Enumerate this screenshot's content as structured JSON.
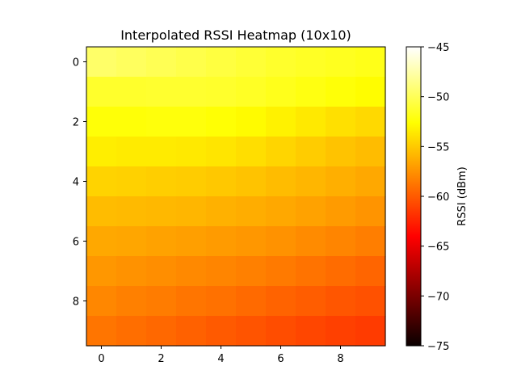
{
  "chart_data": {
    "type": "heatmap",
    "title": "Interpolated RSSI Heatmap (10x10)",
    "xlabel": "",
    "ylabel": "",
    "x_ticks": [
      0,
      2,
      4,
      6,
      8
    ],
    "y_ticks": [
      0,
      2,
      4,
      6,
      8
    ],
    "xlim": [
      -0.5,
      9.5
    ],
    "ylim": [
      9.5,
      -0.5
    ],
    "grid": false,
    "colormap": "hot",
    "colorbar": {
      "label": "RSSI (dBm)",
      "vmin": -75,
      "vmax": -45,
      "ticks": [
        -45,
        -50,
        -55,
        -60,
        -65,
        -70,
        -75
      ]
    },
    "rows": [
      [
        -49.5,
        -49.8,
        -50.1,
        -50.4,
        -50.7,
        -51.0,
        -51.3,
        -51.5,
        -51.7,
        -51.9
      ],
      [
        -51.3,
        -51.3,
        -51.2,
        -51.2,
        -51.3,
        -51.5,
        -51.8,
        -52.1,
        -52.4,
        -52.7
      ],
      [
        -52.4,
        -52.4,
        -52.3,
        -52.3,
        -52.5,
        -52.8,
        -53.2,
        -53.6,
        -54.0,
        -54.3
      ],
      [
        -53.4,
        -53.5,
        -53.5,
        -53.6,
        -53.8,
        -54.1,
        -54.5,
        -54.9,
        -55.3,
        -55.6
      ],
      [
        -54.6,
        -54.7,
        -54.8,
        -54.9,
        -55.1,
        -55.3,
        -55.6,
        -55.9,
        -56.2,
        -56.5
      ],
      [
        -55.6,
        -55.7,
        -55.8,
        -55.9,
        -56.1,
        -56.3,
        -56.5,
        -56.8,
        -57.1,
        -57.4
      ],
      [
        -56.5,
        -56.6,
        -56.8,
        -56.9,
        -57.1,
        -57.3,
        -57.5,
        -57.8,
        -58.1,
        -58.4
      ],
      [
        -57.3,
        -57.5,
        -57.7,
        -57.9,
        -58.1,
        -58.3,
        -58.6,
        -58.9,
        -59.2,
        -59.5
      ],
      [
        -58.0,
        -58.3,
        -58.5,
        -58.8,
        -59.0,
        -59.3,
        -59.6,
        -59.9,
        -60.2,
        -60.4
      ],
      [
        -58.8,
        -59.1,
        -59.4,
        -59.7,
        -60.0,
        -60.3,
        -60.6,
        -60.9,
        -61.2,
        -61.4
      ]
    ]
  }
}
